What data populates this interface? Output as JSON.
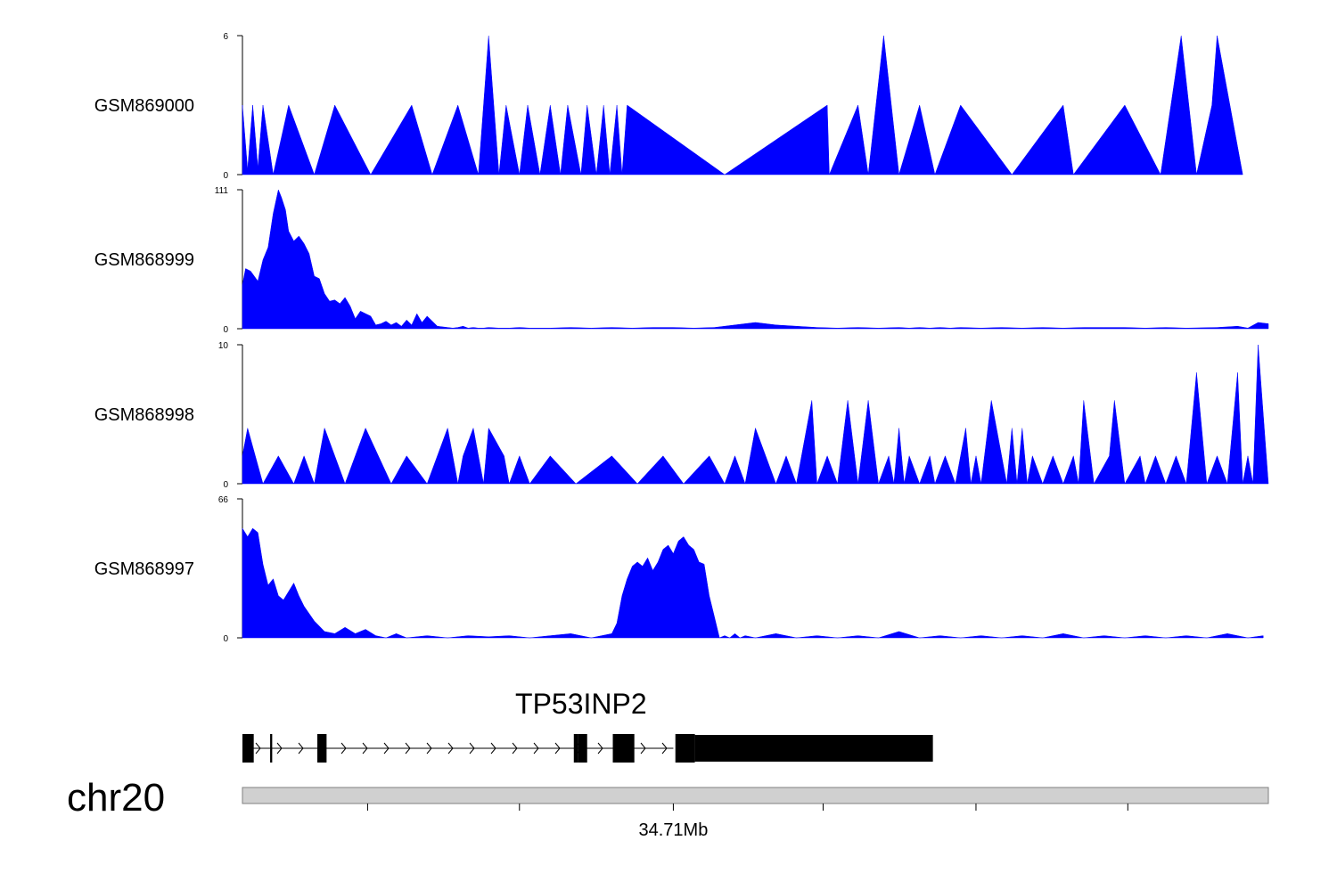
{
  "chart_data": {
    "type": "area",
    "color": "#0000ff",
    "tracks": [
      {
        "name": "GSM869000",
        "ylim": [
          0,
          6
        ],
        "ytick_labels": [
          "0",
          "6"
        ],
        "x": [
          0,
          0.005,
          0.01,
          0.015,
          0.02,
          0.03,
          0.045,
          0.07,
          0.09,
          0.125,
          0.165,
          0.185,
          0.21,
          0.23,
          0.235,
          0.24,
          0.25,
          0.257,
          0.27,
          0.278,
          0.29,
          0.3,
          0.31,
          0.317,
          0.33,
          0.336,
          0.345,
          0.352,
          0.358,
          0.365,
          0.37,
          0.375,
          0.47,
          0.57,
          0.572,
          0.6,
          0.61,
          0.625,
          0.64,
          0.66,
          0.675,
          0.7,
          0.75,
          0.8,
          0.81,
          0.86,
          0.895,
          0.905,
          0.915,
          0.93,
          0.945,
          0.95,
          0.975
        ],
        "y": [
          3,
          0.2,
          3,
          0.3,
          3,
          0,
          3,
          0,
          3,
          0,
          3,
          0,
          3,
          0,
          3,
          6,
          0,
          3,
          0,
          3,
          0,
          3,
          0,
          3,
          0,
          3,
          0,
          3,
          0,
          3,
          0,
          3,
          0,
          3,
          0,
          3,
          0,
          6,
          0,
          3,
          0,
          3,
          0,
          3,
          0,
          3,
          0,
          3,
          6,
          0,
          3,
          6,
          0
        ]
      },
      {
        "name": "GSM868999",
        "ylim": [
          0,
          111
        ],
        "ytick_labels": [
          "0",
          "111"
        ],
        "x": [
          0,
          0.003,
          0.008,
          0.015,
          0.02,
          0.025,
          0.03,
          0.035,
          0.038,
          0.042,
          0.045,
          0.05,
          0.055,
          0.06,
          0.065,
          0.07,
          0.075,
          0.08,
          0.085,
          0.09,
          0.095,
          0.1,
          0.105,
          0.11,
          0.115,
          0.12,
          0.125,
          0.13,
          0.135,
          0.14,
          0.145,
          0.15,
          0.155,
          0.16,
          0.165,
          0.17,
          0.175,
          0.18,
          0.19,
          0.2,
          0.205,
          0.21,
          0.215,
          0.22,
          0.225,
          0.23,
          0.235,
          0.24,
          0.25,
          0.26,
          0.27,
          0.28,
          0.3,
          0.32,
          0.34,
          0.36,
          0.38,
          0.4,
          0.42,
          0.44,
          0.46,
          0.48,
          0.5,
          0.52,
          0.54,
          0.56,
          0.58,
          0.6,
          0.62,
          0.64,
          0.65,
          0.66,
          0.67,
          0.68,
          0.69,
          0.7,
          0.72,
          0.74,
          0.76,
          0.78,
          0.8,
          0.82,
          0.84,
          0.86,
          0.88,
          0.9,
          0.92,
          0.95,
          0.97,
          0.98,
          0.99,
          1.0
        ],
        "y": [
          35,
          48,
          46,
          38,
          55,
          65,
          92,
          111,
          105,
          95,
          78,
          70,
          74,
          68,
          60,
          42,
          40,
          28,
          22,
          23,
          20,
          25,
          18,
          8,
          14,
          12,
          10,
          3,
          4,
          6,
          3,
          5,
          2,
          7,
          3,
          12,
          5,
          10,
          2,
          1,
          0.5,
          1,
          2,
          0.5,
          1,
          0.5,
          0.5,
          1,
          0.5,
          0.5,
          1,
          0.5,
          0.5,
          1,
          0.5,
          1,
          0.5,
          1,
          1,
          0.5,
          1,
          3,
          5,
          3,
          2,
          1,
          0.5,
          1,
          0.5,
          1,
          0.5,
          1,
          0.5,
          1,
          0.5,
          1,
          0.5,
          1,
          0.5,
          1,
          0.5,
          1,
          1,
          1,
          0.5,
          1,
          0.5,
          1,
          2,
          0.5,
          5,
          4
        ]
      },
      {
        "name": "GSM868998",
        "ylim": [
          0,
          10
        ],
        "ytick_labels": [
          "0",
          "10"
        ],
        "x": [
          0,
          0.005,
          0.02,
          0.035,
          0.05,
          0.06,
          0.07,
          0.08,
          0.1,
          0.11,
          0.12,
          0.145,
          0.16,
          0.18,
          0.2,
          0.21,
          0.215,
          0.225,
          0.235,
          0.24,
          0.255,
          0.26,
          0.27,
          0.28,
          0.3,
          0.325,
          0.36,
          0.385,
          0.41,
          0.43,
          0.455,
          0.47,
          0.48,
          0.49,
          0.5,
          0.52,
          0.53,
          0.54,
          0.555,
          0.56,
          0.57,
          0.58,
          0.59,
          0.6,
          0.61,
          0.62,
          0.63,
          0.635,
          0.64,
          0.645,
          0.65,
          0.66,
          0.67,
          0.675,
          0.685,
          0.695,
          0.705,
          0.71,
          0.715,
          0.72,
          0.73,
          0.745,
          0.75,
          0.755,
          0.76,
          0.765,
          0.77,
          0.78,
          0.79,
          0.8,
          0.81,
          0.815,
          0.82,
          0.83,
          0.845,
          0.85,
          0.86,
          0.875,
          0.88,
          0.89,
          0.9,
          0.91,
          0.92,
          0.93,
          0.94,
          0.95,
          0.96,
          0.97,
          0.975,
          0.98,
          0.985,
          0.99,
          1.0
        ],
        "y": [
          2,
          4,
          0,
          2,
          0,
          2,
          0,
          4,
          0,
          2,
          4,
          0,
          2,
          0,
          4,
          0,
          2,
          4,
          0,
          4,
          2,
          0,
          2,
          0,
          2,
          0,
          2,
          0,
          2,
          0,
          2,
          0,
          2,
          0,
          4,
          0,
          2,
          0,
          6,
          0,
          2,
          0,
          6,
          0,
          6,
          0,
          2,
          0,
          4,
          0,
          2,
          0,
          2,
          0,
          2,
          0,
          4,
          0,
          2,
          0,
          6,
          0,
          4,
          0,
          4,
          0,
          2,
          0,
          2,
          0,
          2,
          0,
          6,
          0,
          2,
          6,
          0,
          2,
          0,
          2,
          0,
          2,
          0,
          8,
          0,
          2,
          0,
          8,
          0,
          2,
          0,
          10,
          0
        ]
      },
      {
        "name": "GSM868997",
        "ylim": [
          0,
          66
        ],
        "ytick_labels": [
          "0",
          "66"
        ],
        "x": [
          0,
          0.005,
          0.01,
          0.015,
          0.02,
          0.025,
          0.03,
          0.035,
          0.04,
          0.045,
          0.05,
          0.055,
          0.06,
          0.07,
          0.08,
          0.09,
          0.1,
          0.11,
          0.12,
          0.13,
          0.14,
          0.15,
          0.16,
          0.18,
          0.2,
          0.22,
          0.24,
          0.26,
          0.28,
          0.3,
          0.32,
          0.34,
          0.36,
          0.365,
          0.37,
          0.375,
          0.38,
          0.385,
          0.39,
          0.395,
          0.4,
          0.405,
          0.41,
          0.415,
          0.42,
          0.425,
          0.43,
          0.435,
          0.44,
          0.445,
          0.45,
          0.455,
          0.46,
          0.465,
          0.47,
          0.475,
          0.48,
          0.485,
          0.49,
          0.5,
          0.52,
          0.54,
          0.56,
          0.58,
          0.6,
          0.62,
          0.64,
          0.66,
          0.68,
          0.7,
          0.72,
          0.74,
          0.76,
          0.78,
          0.8,
          0.82,
          0.84,
          0.86,
          0.88,
          0.9,
          0.92,
          0.94,
          0.96,
          0.98,
          0.995
        ],
        "y": [
          52,
          48,
          52,
          50,
          35,
          25,
          28,
          20,
          18,
          22,
          26,
          20,
          15,
          8,
          3,
          2,
          5,
          2,
          4,
          1,
          0,
          2,
          0,
          1,
          0,
          1,
          0.5,
          1,
          0,
          1,
          2,
          0,
          2,
          7,
          20,
          28,
          34,
          36,
          34,
          38,
          32,
          36,
          42,
          44,
          40,
          46,
          48,
          44,
          42,
          36,
          35,
          20,
          10,
          0,
          1,
          0,
          2,
          0,
          1,
          0,
          2,
          0,
          1,
          0,
          1,
          0,
          3,
          0,
          1,
          0,
          1,
          0,
          1,
          0,
          2,
          0,
          1,
          0,
          1,
          0,
          1,
          0,
          2,
          0,
          1
        ]
      }
    ],
    "gene": {
      "name": "TP53INP2",
      "strand": "+",
      "intron_span": [
        0.0,
        0.42
      ],
      "exons": [
        {
          "start": 0.0,
          "end": 0.011,
          "thick": true
        },
        {
          "start": 0.027,
          "end": 0.029,
          "thick": true
        },
        {
          "start": 0.073,
          "end": 0.082,
          "thick": true
        },
        {
          "start": 0.323,
          "end": 0.327,
          "thick": true
        },
        {
          "start": 0.327,
          "end": 0.336,
          "thick": true
        },
        {
          "start": 0.361,
          "end": 0.382,
          "thick": true
        },
        {
          "start": 0.422,
          "end": 0.441,
          "thick": true
        },
        {
          "start": 0.441,
          "end": 0.673,
          "thick": false
        }
      ]
    },
    "chromosome": "chr20",
    "axis_tick_label": "34.71Mb",
    "axis_ticks": [
      0.122,
      0.27,
      0.42,
      0.566,
      0.715,
      0.863
    ]
  }
}
